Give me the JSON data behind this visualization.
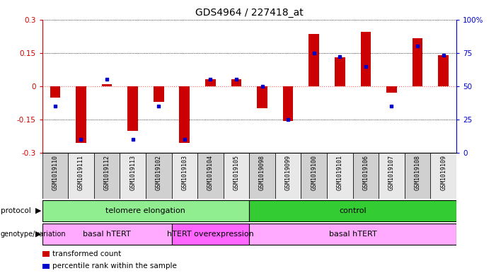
{
  "title": "GDS4964 / 227418_at",
  "samples": [
    "GSM1019110",
    "GSM1019111",
    "GSM1019112",
    "GSM1019113",
    "GSM1019102",
    "GSM1019103",
    "GSM1019104",
    "GSM1019105",
    "GSM1019098",
    "GSM1019099",
    "GSM1019100",
    "GSM1019101",
    "GSM1019106",
    "GSM1019107",
    "GSM1019108",
    "GSM1019109"
  ],
  "transformed_count": [
    -0.05,
    -0.255,
    0.01,
    -0.2,
    -0.07,
    -0.255,
    0.03,
    0.03,
    -0.1,
    -0.155,
    0.235,
    0.13,
    0.245,
    -0.03,
    0.215,
    0.14
  ],
  "percentile_rank": [
    35,
    10,
    55,
    10,
    35,
    10,
    55,
    55,
    50,
    25,
    75,
    72,
    65,
    35,
    80,
    73
  ],
  "ylim_left": [
    -0.3,
    0.3
  ],
  "ylim_right": [
    0,
    100
  ],
  "yticks_left": [
    -0.3,
    -0.15,
    0,
    0.15,
    0.3
  ],
  "yticks_right": [
    0,
    25,
    50,
    75,
    100
  ],
  "protocol_groups": [
    {
      "label": "telomere elongation",
      "start": 0,
      "end": 8,
      "color": "#90EE90"
    },
    {
      "label": "control",
      "start": 8,
      "end": 16,
      "color": "#33CC33"
    }
  ],
  "genotype_groups": [
    {
      "label": "basal hTERT",
      "start": 0,
      "end": 5,
      "color": "#FFAAFF"
    },
    {
      "label": "hTERT overexpression",
      "start": 5,
      "end": 8,
      "color": "#FF66FF"
    },
    {
      "label": "basal hTERT",
      "start": 8,
      "end": 16,
      "color": "#FFAAFF"
    }
  ],
  "bar_color": "#CC0000",
  "dot_color": "#0000CC",
  "zero_line_color": "#FF6666",
  "grid_line_color": "#000000",
  "left_axis_color": "#CC0000",
  "right_axis_color": "#0000CC",
  "protocol_label": "protocol",
  "genotype_label": "genotype/variation",
  "legend_items": [
    {
      "color": "#CC0000",
      "label": "transformed count"
    },
    {
      "color": "#0000CC",
      "label": "percentile rank within the sample"
    }
  ]
}
